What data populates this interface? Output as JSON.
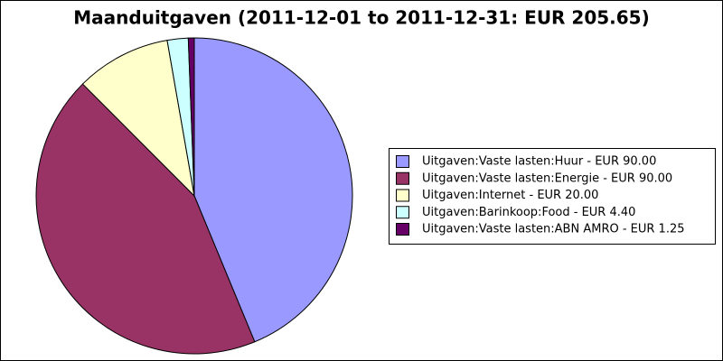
{
  "chart_data": {
    "type": "pie",
    "title": "Maanduitgaven (2011-12-01 to 2011-12-31: EUR 205.65)",
    "categories": [
      "Uitgaven:Vaste lasten:Huur - EUR 90.00",
      "Uitgaven:Vaste lasten:Energie - EUR 90.00",
      "Uitgaven:Internet - EUR 20.00",
      "Uitgaven:Barinkoop:Food - EUR 4.40",
      "Uitgaven:Vaste lasten:ABN AMRO - EUR 1.25"
    ],
    "values": [
      90.0,
      90.0,
      20.0,
      4.4,
      1.25
    ],
    "colors": [
      "#9999ff",
      "#993366",
      "#ffffcc",
      "#ccffff",
      "#660066"
    ],
    "legend": "right"
  }
}
